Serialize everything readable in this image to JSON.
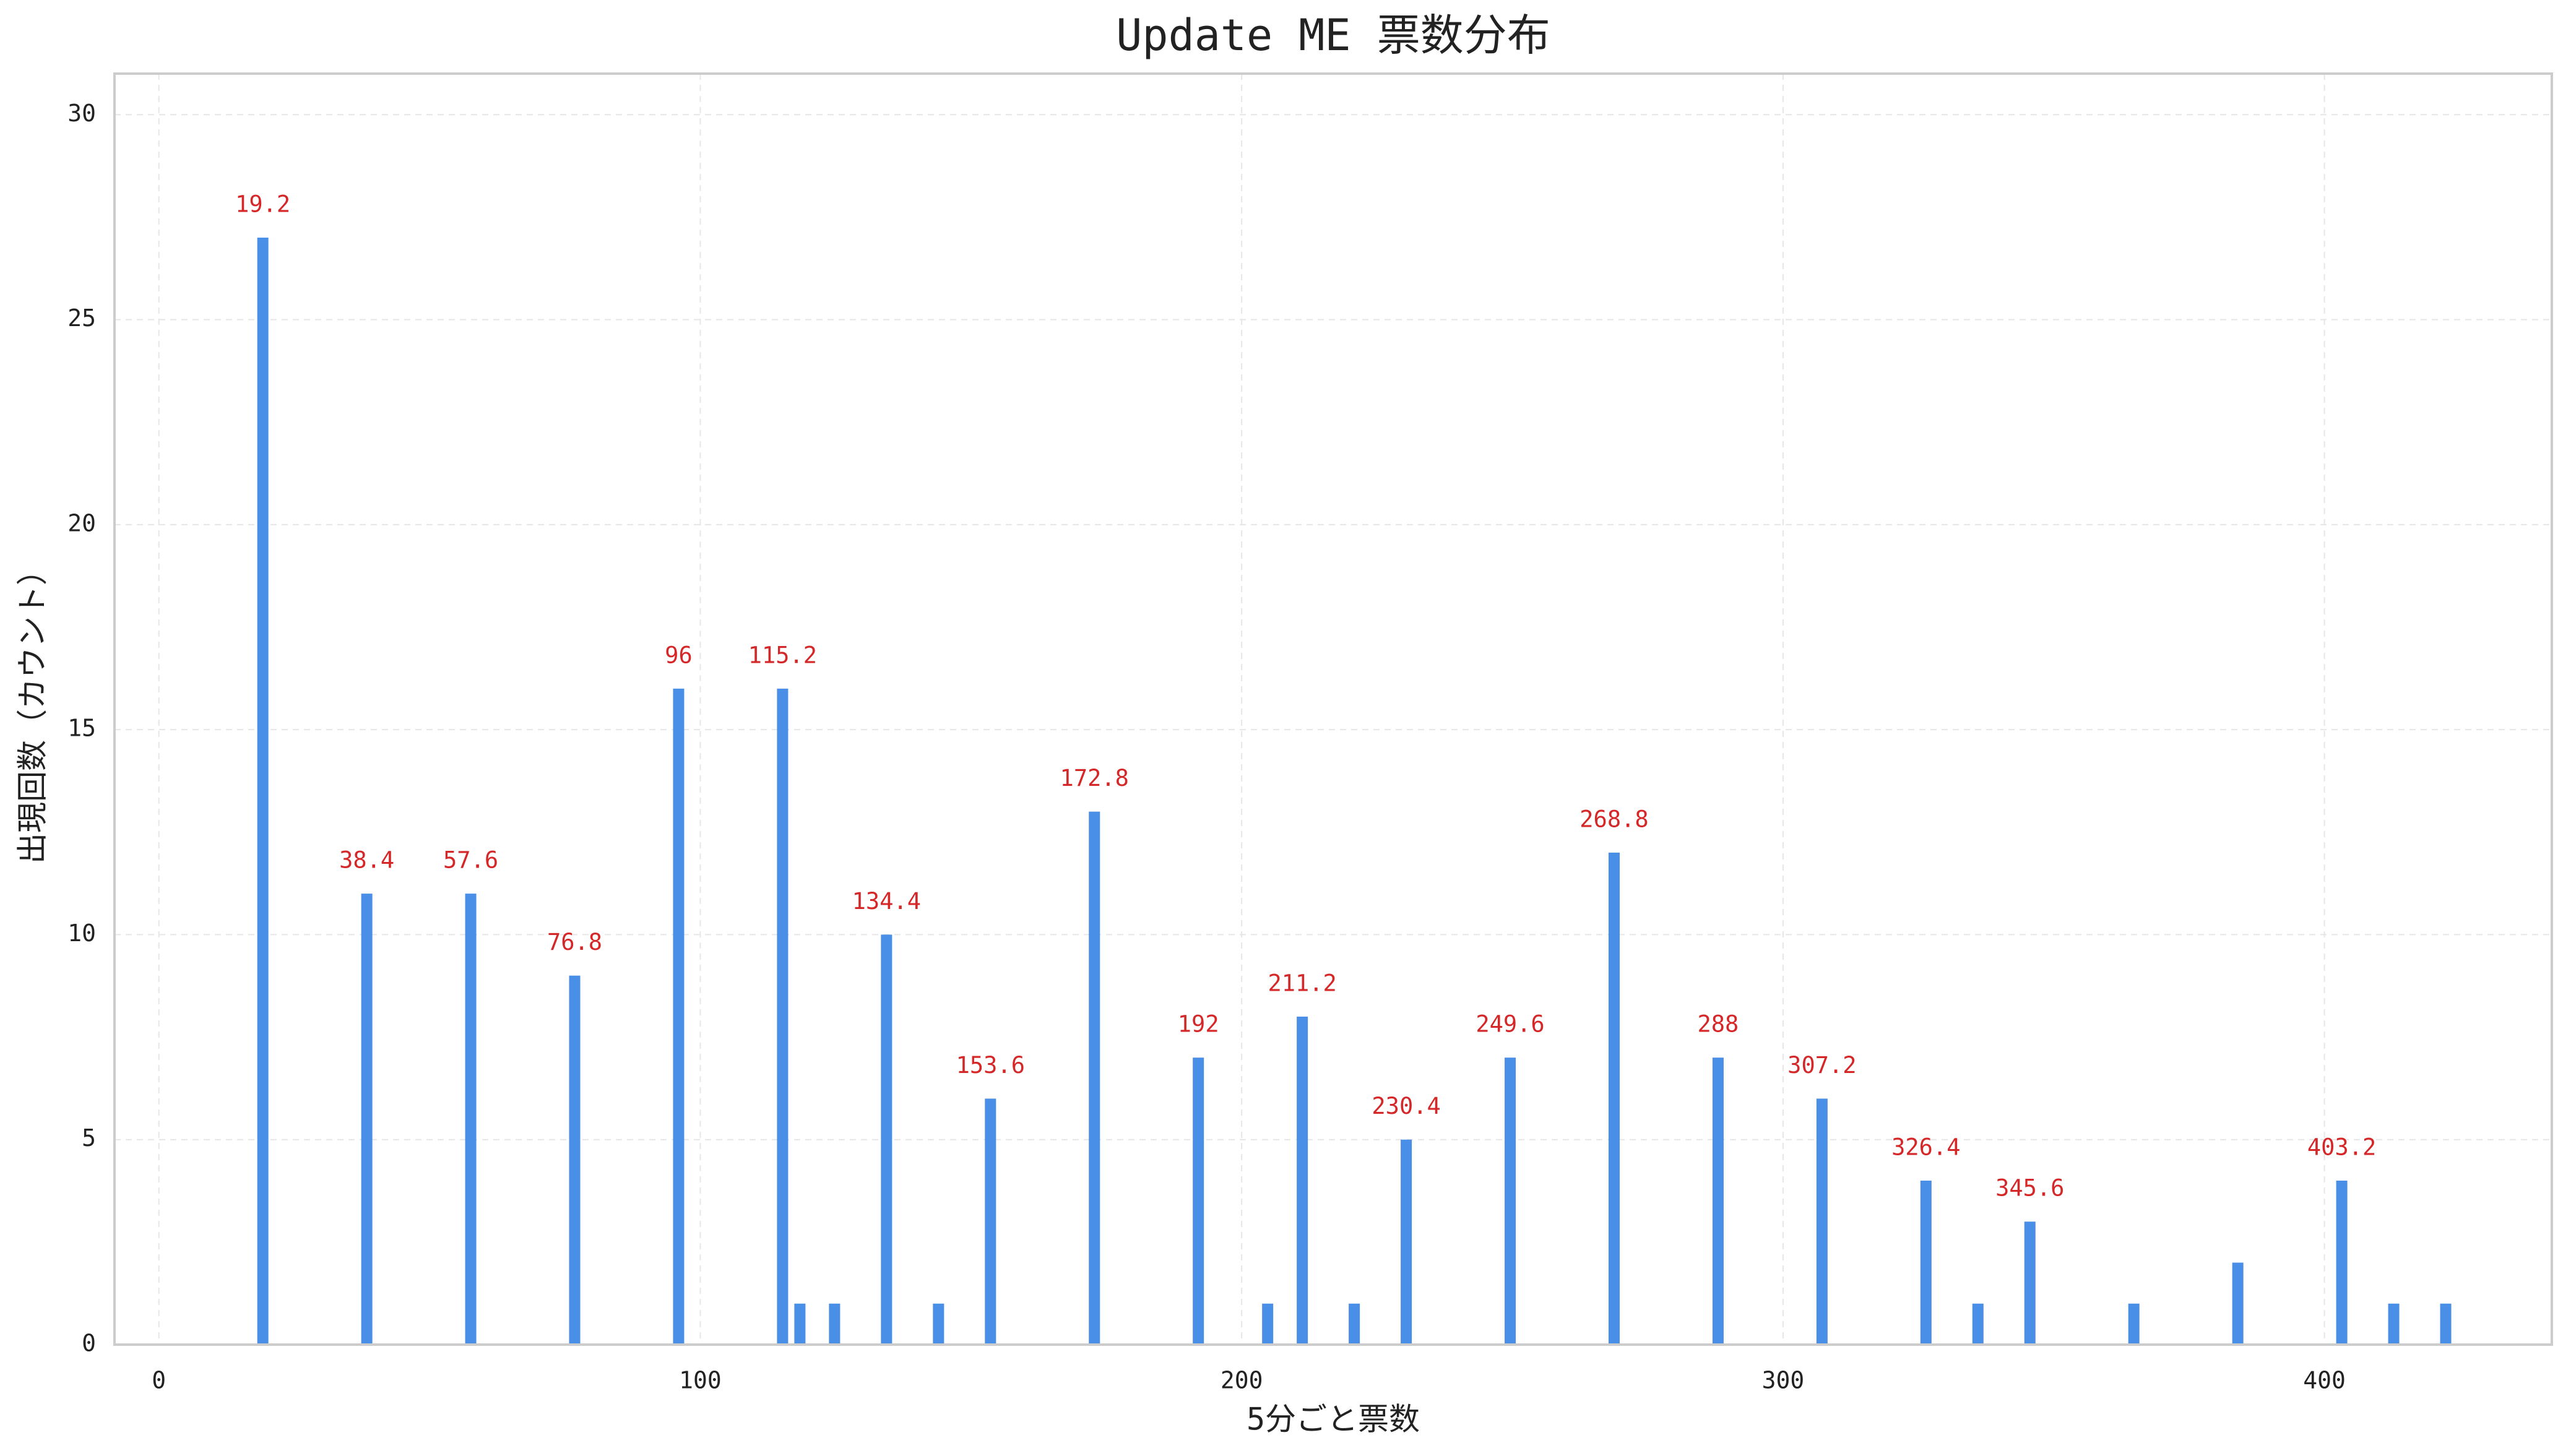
{
  "chart_data": {
    "type": "bar",
    "title": "Update ME 票数分布",
    "x_label": "5分ごと票数",
    "y_label": "出現回数（カウント）",
    "color": "#4a8fe7",
    "annotation_color": "#d62728",
    "grid": true,
    "x": [
      19.2,
      38.4,
      57.6,
      76.8,
      96,
      115.2,
      118.4,
      124.8,
      134.4,
      144,
      153.6,
      172.8,
      192,
      204.8,
      211.2,
      220.8,
      230.4,
      249.6,
      268.8,
      288,
      307.2,
      326.4,
      336,
      345.6,
      364.8,
      384,
      403.2,
      412.8,
      422.4
    ],
    "values": [
      27,
      11,
      11,
      9,
      16,
      16,
      1,
      1,
      10,
      1,
      6,
      13,
      7,
      1,
      8,
      1,
      5,
      7,
      12,
      7,
      6,
      4,
      1,
      3,
      1,
      2,
      4,
      1,
      1
    ],
    "annotations": [
      19.2,
      38.4,
      57.6,
      76.8,
      96,
      115.2,
      134.4,
      153.6,
      172.8,
      192,
      211.2,
      230.4,
      249.6,
      268.8,
      288,
      307.2,
      326.4,
      345.6,
      403.2
    ],
    "xlim": [
      -8.2,
      442
    ],
    "ylim": [
      0,
      31
    ],
    "xticks": [
      0,
      100,
      200,
      300,
      400
    ],
    "yticks": [
      0,
      5,
      10,
      15,
      20,
      25,
      30
    ]
  }
}
